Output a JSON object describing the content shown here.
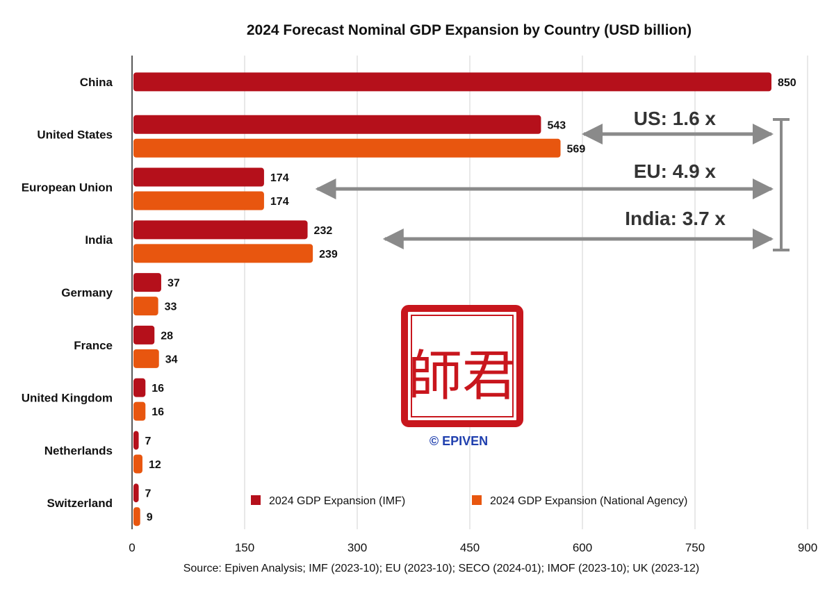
{
  "chart_data": {
    "type": "bar",
    "orientation": "horizontal",
    "title": "2024 Forecast Nominal GDP Expansion by Country (USD billion)",
    "categories": [
      "China",
      "United States",
      "European Union",
      "India",
      "Germany",
      "France",
      "United Kingdom",
      "Netherlands",
      "Switzerland"
    ],
    "series": [
      {
        "name": "2024 GDP Expansion (IMF)",
        "color": "#b5101b",
        "values": [
          850,
          543,
          174,
          232,
          37,
          28,
          16,
          7,
          7
        ]
      },
      {
        "name": "2024 GDP Expansion (National Agency)",
        "color": "#e8560f",
        "values": [
          null,
          569,
          174,
          239,
          33,
          34,
          16,
          12,
          9
        ]
      }
    ],
    "xlim": [
      0,
      900
    ],
    "xticks": [
      "0",
      "150",
      "300",
      "450",
      "600",
      "750",
      "900"
    ],
    "grid": "vertical",
    "legend_position": "bottom-right",
    "annotations": [
      {
        "text": "US: 1.6 x",
        "from_value": 600,
        "to_value": 850
      },
      {
        "text": "EU: 4.9 x",
        "from_value": 245,
        "to_value": 850
      },
      {
        "text": "India: 3.7 x",
        "from_value": 335,
        "to_value": 850
      }
    ],
    "source": "Source: Epiven Analysis; IMF (2023-10); EU (2023-10); SECO (2024-01); IMOF (2023-10); UK (2023-12)"
  },
  "watermark": {
    "copyright": "© EPIVEN",
    "seal_text": "師君",
    "seal_color": "#c8161d"
  }
}
